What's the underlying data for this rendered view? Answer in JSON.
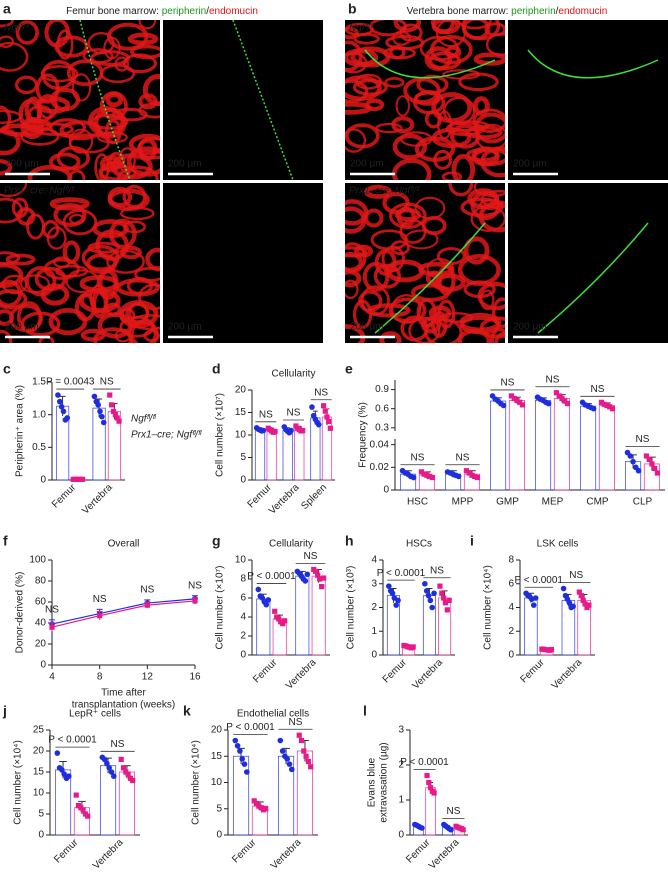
{
  "images": [
    {
      "panel": "a",
      "title": [
        "Femur bone marrow: ",
        "peripherin",
        "/",
        "endomucin"
      ],
      "row_labels": [
        "Ngfᶠˡ/ᶠˡ",
        "Prx1–cre; Ngfᶠˡ/ᶠˡ"
      ],
      "scale_bar": "200 µm"
    },
    {
      "panel": "b",
      "title": [
        "Vertebra bone marrow: ",
        "peripherin",
        "/",
        "endomucin"
      ],
      "row_labels": [
        "Ngfᶠˡ/ᶠˡ",
        "Prx1–cre; Ngfᶠˡ/ᶠˡ"
      ],
      "scale_bar": "200 µm"
    }
  ],
  "chart_data": [
    {
      "type": "bar",
      "panel": "c",
      "ylabel": "Peripherin⁺ area (%)",
      "categories": [
        "Femur",
        "Vertebra"
      ],
      "xtick_rotation": 45,
      "ylim": [
        0,
        1.5
      ],
      "yticks": [
        0,
        0.5,
        {
          "value": 1,
          "label": "1.0"
        },
        1.5
      ],
      "legend": "right",
      "annotations": [
        "P = 0.0043",
        "NS"
      ],
      "series": [
        {
          "name": "Ngfᶠˡ/ᶠˡ",
          "color": "#1f2de0",
          "values": [
            1.13,
            1.1
          ],
          "errors": [
            0.15,
            0.14
          ],
          "points": [
            [
              1.3,
              1.2,
              1.12,
              1.05,
              0.92,
              0.95
            ],
            [
              1.28,
              1.2,
              1.15,
              1.05,
              0.97,
              0.88
            ]
          ]
        },
        {
          "name": "Prx1–cre; Ngfᶠˡ/ᶠˡ",
          "color": "#e8198b",
          "values": [
            0.01,
            1.05
          ],
          "errors": [
            0.005,
            0.12
          ],
          "points": [
            [
              0.01,
              0.01,
              0.01,
              0.01,
              0.01,
              0.01
            ],
            [
              1.3,
              1.15,
              1.05,
              1.0,
              0.95,
              0.9
            ]
          ]
        }
      ]
    },
    {
      "type": "bar",
      "panel": "d",
      "title": "Cellularity",
      "ylabel": "Cell number (×10⁷)",
      "categories": [
        "Femur",
        "Vertebra",
        "Spleen"
      ],
      "xtick_rotation": 45,
      "ylim": [
        0,
        20
      ],
      "yticks": [
        0,
        5,
        10,
        15,
        20
      ],
      "annotations": [
        "NS",
        "NS",
        "NS"
      ],
      "series": [
        {
          "color": "#1f2de0",
          "values": [
            11.2,
            11,
            13.8
          ],
          "errors": [
            0.4,
            0.6,
            1.5
          ],
          "points": [
            [
              11.6,
              11.3,
              11.1,
              10.9,
              11.0
            ],
            [
              11.8,
              11.2,
              10.8,
              10.5,
              11.0
            ],
            [
              16.2,
              14.3,
              13.5,
              12.8,
              12.3
            ]
          ]
        },
        {
          "color": "#e8198b",
          "values": [
            11,
            11.3,
            14
          ],
          "errors": [
            0.5,
            0.6,
            1.8
          ],
          "points": [
            [
              11.5,
              11.2,
              10.9,
              10.6,
              10.8
            ],
            [
              12.0,
              11.5,
              11.2,
              10.9,
              11.0
            ],
            [
              16.5,
              15.3,
              14.0,
              13.0,
              11.5
            ]
          ]
        }
      ]
    },
    {
      "type": "bar",
      "panel": "e",
      "ylabel": "Frequency (%)",
      "categories": [
        "HSC",
        "MPP",
        "GMP",
        "MEP",
        "CMP",
        "CLP"
      ],
      "segments": [
        {
          "ylim": [
            0,
            0.045
          ],
          "yticks": [
            0,
            0.02,
            0.04
          ]
        },
        {
          "ylim": [
            0.25,
            1.05
          ],
          "yticks": [
            0.3,
            0.6,
            0.9
          ]
        }
      ],
      "annotations": [
        "NS",
        "NS",
        "NS",
        "NS",
        "NS",
        "NS"
      ],
      "series": [
        {
          "color": "#1f2de0",
          "values": [
            0.014,
            0.014,
            0.72,
            0.73,
            0.64,
            0.025
          ],
          "errors": [
            0.003,
            0.003,
            0.05,
            0.04,
            0.04,
            0.006
          ],
          "points": [
            [
              0.017,
              0.015,
              0.014,
              0.012,
              0.011
            ],
            [
              0.016,
              0.015,
              0.014,
              0.013,
              0.012
            ],
            [
              0.8,
              0.75,
              0.72,
              0.68,
              0.65
            ],
            [
              0.78,
              0.75,
              0.73,
              0.7,
              0.68
            ],
            [
              0.7,
              0.66,
              0.64,
              0.62,
              0.6
            ],
            [
              0.033,
              0.03,
              0.025,
              0.02,
              0.017
            ]
          ]
        },
        {
          "color": "#e8198b",
          "values": [
            0.013,
            0.014,
            0.73,
            0.76,
            0.65,
            0.023
          ],
          "errors": [
            0.003,
            0.003,
            0.05,
            0.06,
            0.04,
            0.006
          ],
          "points": [
            [
              0.016,
              0.014,
              0.013,
              0.012,
              0.011
            ],
            [
              0.017,
              0.015,
              0.013,
              0.012,
              0.011
            ],
            [
              0.8,
              0.76,
              0.73,
              0.7,
              0.66
            ],
            [
              0.85,
              0.8,
              0.76,
              0.72,
              0.68
            ],
            [
              0.7,
              0.67,
              0.65,
              0.63,
              0.6
            ],
            [
              0.03,
              0.027,
              0.023,
              0.019,
              0.015
            ]
          ]
        }
      ]
    },
    {
      "type": "line",
      "panel": "f",
      "title": "Overall",
      "ylabel": "Donor-derived (%)",
      "xlabel": [
        "Time after",
        "transplantation (weeks)"
      ],
      "x": [
        4,
        8,
        12,
        16
      ],
      "xlim": [
        4,
        16
      ],
      "xticks": [
        4,
        8,
        12,
        16
      ],
      "ylim": [
        0,
        100
      ],
      "yticks": [
        0,
        20,
        40,
        60,
        80,
        100
      ],
      "annotations": [
        "NS",
        "NS",
        "NS",
        "NS"
      ],
      "series": [
        {
          "color": "#1f2de0",
          "values": [
            39,
            49,
            59,
            63
          ],
          "errors": [
            4,
            4,
            3,
            3
          ]
        },
        {
          "color": "#e8198b",
          "values": [
            36,
            47,
            57,
            61
          ],
          "errors": [
            4,
            4,
            3,
            3
          ]
        }
      ]
    },
    {
      "type": "bar",
      "panel": "g",
      "title": "Cellularity",
      "ylabel": "Cell number (×10⁷)",
      "categories": [
        "Femur",
        "Vertebra"
      ],
      "xtick_rotation": 45,
      "ylim": [
        0,
        10
      ],
      "yticks": [
        0,
        2,
        4,
        6,
        8,
        10
      ],
      "annotations": [
        "P < 0.0001",
        "NS"
      ],
      "series": [
        {
          "color": "#1f2de0",
          "values": [
            5.9,
            8.3
          ],
          "errors": [
            0.5,
            0.5
          ],
          "points": [
            [
              6.9,
              6.2,
              6.0,
              5.6,
              5.3,
              5.8
            ],
            [
              8.8,
              8.6,
              8.3,
              8.0,
              7.8,
              8.5
            ]
          ]
        },
        {
          "color": "#e8198b",
          "values": [
            3.8,
            8.3
          ],
          "errors": [
            0.4,
            0.7
          ],
          "points": [
            [
              4.6,
              4.0,
              3.8,
              3.5,
              3.3,
              3.6
            ],
            [
              9.0,
              8.8,
              8.4,
              8.0,
              7.2,
              8.1
            ]
          ]
        }
      ]
    },
    {
      "type": "bar",
      "panel": "h",
      "title": "HSCs",
      "ylabel": "Cell number (×10³)",
      "categories": [
        "Femur",
        "Vertebra"
      ],
      "xtick_rotation": 45,
      "ylim": [
        0,
        4
      ],
      "yticks": [
        0,
        1,
        2,
        3,
        4
      ],
      "annotations": [
        "P < 0.0001",
        "NS"
      ],
      "series": [
        {
          "color": "#1f2de0",
          "values": [
            2.5,
            2.5
          ],
          "errors": [
            0.3,
            0.3
          ],
          "points": [
            [
              2.9,
              2.7,
              2.6,
              2.4,
              2.1,
              2.3
            ],
            [
              3.0,
              2.7,
              2.5,
              2.3,
              2.0,
              2.6
            ]
          ]
        },
        {
          "color": "#e8198b",
          "values": [
            0.35,
            2.4
          ],
          "errors": [
            0.04,
            0.3
          ],
          "points": [
            [
              0.4,
              0.38,
              0.35,
              0.33,
              0.3,
              0.34
            ],
            [
              2.9,
              2.6,
              2.4,
              2.2,
              1.9,
              2.3
            ]
          ]
        }
      ]
    },
    {
      "type": "bar",
      "panel": "i",
      "title": "LSK cells",
      "ylabel": "Cell number (×10⁴)",
      "categories": [
        "Femur",
        "Vertebra"
      ],
      "xtick_rotation": 45,
      "ylim": [
        0,
        8
      ],
      "yticks": [
        0,
        2,
        4,
        6,
        8
      ],
      "annotations": [
        "P < 0.0001",
        "NS"
      ],
      "series": [
        {
          "color": "#1f2de0",
          "values": [
            4.8,
            4.6
          ],
          "errors": [
            0.4,
            0.5
          ],
          "points": [
            [
              5.2,
              5.0,
              4.9,
              4.7,
              4.2,
              4.8
            ],
            [
              5.6,
              5.0,
              4.7,
              4.4,
              4.0,
              4.1
            ]
          ]
        },
        {
          "color": "#e8198b",
          "values": [
            0.45,
            4.6
          ],
          "errors": [
            0.05,
            0.5
          ],
          "points": [
            [
              0.5,
              0.48,
              0.45,
              0.42,
              0.4,
              0.46
            ],
            [
              5.3,
              5.0,
              4.6,
              4.3,
              4.0,
              4.2
            ]
          ]
        }
      ]
    },
    {
      "type": "bar",
      "panel": "j",
      "title": "LepR⁺ cells",
      "ylabel": "Cell number (×10⁴)",
      "categories": [
        "Femur",
        "Vertebra"
      ],
      "xtick_rotation": 45,
      "ylim": [
        0,
        25
      ],
      "yticks": [
        0,
        5,
        10,
        15,
        20,
        25
      ],
      "annotations": [
        "P < 0.0001",
        "NS"
      ],
      "series": [
        {
          "color": "#1f2de0",
          "values": [
            15.5,
            16.5
          ],
          "errors": [
            2,
            1.8
          ],
          "points": [
            [
              19.5,
              16,
              15.5,
              14.5,
              13.5,
              14
            ],
            [
              18.5,
              18,
              17,
              16,
              15,
              14
            ]
          ]
        },
        {
          "color": "#e8198b",
          "values": [
            6.5,
            15
          ],
          "errors": [
            1.5,
            1.5
          ],
          "points": [
            [
              9.5,
              7,
              6.5,
              6,
              5,
              4.5
            ],
            [
              18,
              16,
              15,
              14.5,
              13.5,
              13
            ]
          ]
        }
      ]
    },
    {
      "type": "bar",
      "panel": "k",
      "title": "Endothelial cells",
      "ylabel": "Cell number (×10⁴)",
      "categories": [
        "Femur",
        "Vertebra"
      ],
      "xtick_rotation": 45,
      "ylim": [
        0,
        20
      ],
      "yticks": [
        0,
        5,
        10,
        15,
        20
      ],
      "annotations": [
        "P < 0.0001",
        "NS"
      ],
      "series": [
        {
          "color": "#1f2de0",
          "values": [
            15,
            15
          ],
          "errors": [
            1.5,
            1.5
          ],
          "points": [
            [
              18,
              17,
              16,
              14.5,
              13.5,
              12
            ],
            [
              18,
              16,
              15,
              14.5,
              13.5,
              12.5
            ]
          ]
        },
        {
          "color": "#e8198b",
          "values": [
            5.5,
            16
          ],
          "errors": [
            0.8,
            2
          ],
          "points": [
            [
              6.5,
              6,
              5.5,
              5.2,
              4.8,
              5
            ],
            [
              19,
              18,
              16,
              15,
              14,
              13
            ]
          ]
        }
      ]
    },
    {
      "type": "bar",
      "panel": "l",
      "ylabel": [
        "Evans blue",
        "extravasation (µg)"
      ],
      "categories": [
        "Femur",
        "Vertebra"
      ],
      "xtick_rotation": 45,
      "ylim": [
        0,
        3
      ],
      "yticks": [
        0,
        1,
        2,
        3
      ],
      "annotations": [
        "P < 0.0001",
        "NS"
      ],
      "series": [
        {
          "color": "#1f2de0",
          "values": [
            0.25,
            0.22
          ],
          "errors": [
            0.04,
            0.05
          ],
          "points": [
            [
              0.3,
              0.28,
              0.25,
              0.22,
              0.2
            ],
            [
              0.3,
              0.26,
              0.22,
              0.18,
              0.15
            ]
          ]
        },
        {
          "color": "#e8198b",
          "values": [
            1.35,
            0.2
          ],
          "errors": [
            0.15,
            0.04
          ],
          "points": [
            [
              1.7,
              1.5,
              1.35,
              1.25,
              1.2
            ],
            [
              0.25,
              0.22,
              0.2,
              0.18,
              0.15
            ]
          ]
        }
      ]
    }
  ]
}
